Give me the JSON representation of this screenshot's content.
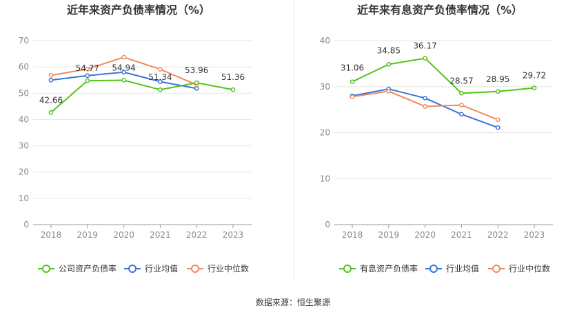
{
  "source_text": "数据来源：恒生聚源",
  "chart_data": [
    {
      "type": "line",
      "title": "近年来资产负债率情况（%）",
      "categories": [
        "2018",
        "2019",
        "2020",
        "2021",
        "2022",
        "2023"
      ],
      "ylim": [
        0,
        70
      ],
      "yticks": [
        0,
        10,
        20,
        30,
        40,
        50,
        60,
        70
      ],
      "grid": true,
      "legend_position": "bottom",
      "series": [
        {
          "name": "公司资产负债率",
          "color": "#52c41a",
          "values": [
            42.66,
            54.77,
            54.94,
            51.34,
            53.96,
            51.36
          ],
          "labels": [
            "42.66",
            "54.77",
            "54.94",
            "51.34",
            "53.96",
            "51.36"
          ]
        },
        {
          "name": "行业均值",
          "color": "#3b72d6",
          "values": [
            55.0,
            56.7,
            58.0,
            54.4,
            51.8,
            null
          ]
        },
        {
          "name": "行业中位数",
          "color": "#f08a5d",
          "values": [
            56.8,
            59.2,
            63.7,
            59.1,
            53.2,
            null
          ]
        }
      ]
    },
    {
      "type": "line",
      "title": "近年来有息资产负债率情况（%）",
      "categories": [
        "2018",
        "2019",
        "2020",
        "2021",
        "2022",
        "2023"
      ],
      "ylim": [
        0,
        40
      ],
      "yticks": [
        0,
        10,
        20,
        30,
        40
      ],
      "grid": true,
      "legend_position": "bottom",
      "series": [
        {
          "name": "有息资产负债率",
          "color": "#52c41a",
          "values": [
            31.06,
            34.85,
            36.17,
            28.57,
            28.95,
            29.72
          ],
          "labels": [
            "31.06",
            "34.85",
            "36.17",
            "28.57",
            "28.95",
            "29.72"
          ]
        },
        {
          "name": "行业均值",
          "color": "#3b72d6",
          "values": [
            28.0,
            29.5,
            27.5,
            24.0,
            21.1,
            null
          ]
        },
        {
          "name": "行业中位数",
          "color": "#f08a5d",
          "values": [
            27.8,
            29.0,
            25.7,
            26.0,
            22.8,
            null
          ]
        }
      ]
    }
  ]
}
